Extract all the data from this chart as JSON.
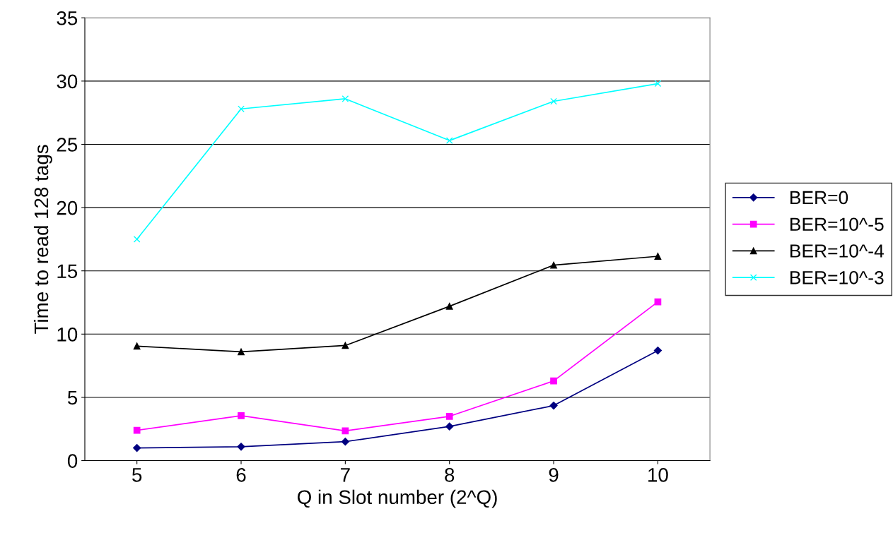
{
  "chart_data": {
    "type": "line",
    "xlabel": "Q in Slot number (2^Q)",
    "ylabel": "Time to read 128 tags",
    "categories": [
      "5",
      "6",
      "7",
      "8",
      "9",
      "10"
    ],
    "series": [
      {
        "name": "BER=0",
        "color": "#000080",
        "marker": "diamond",
        "values": [
          1.0,
          1.1,
          1.5,
          2.7,
          4.35,
          8.7
        ]
      },
      {
        "name": "BER=10^-5",
        "color": "#ff00ff",
        "marker": "square",
        "values": [
          2.4,
          3.55,
          2.35,
          3.5,
          6.3,
          12.55
        ]
      },
      {
        "name": "BER=10^-4",
        "color": "#000000",
        "marker": "triangle",
        "values": [
          9.05,
          8.6,
          9.1,
          12.2,
          15.45,
          16.15
        ]
      },
      {
        "name": "BER=10^-3",
        "color": "#00ffff",
        "marker": "cross",
        "values": [
          17.5,
          27.8,
          28.6,
          25.3,
          28.4,
          29.8
        ]
      }
    ],
    "ylim": [
      0,
      35
    ],
    "yticks": [
      0,
      5,
      10,
      15,
      20,
      25,
      30,
      35
    ],
    "grid": "y",
    "legend": "right",
    "line_style": "solid"
  }
}
